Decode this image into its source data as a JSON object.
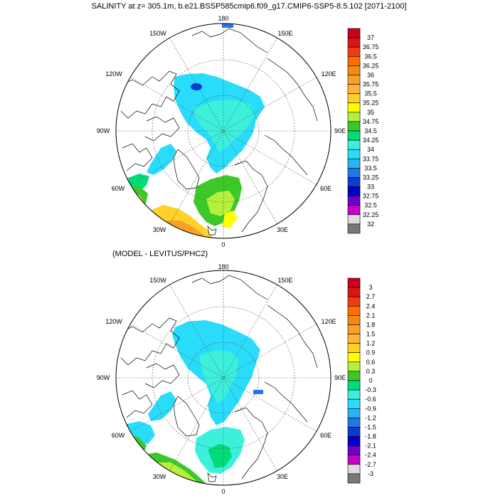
{
  "title": "SALINITY at z= 305.1m, b.e21.BSSP585cmip6.f09_g17.CMIP6-SSP5-8.5.102 [2071-2100]",
  "subtitle": "(MODEL - LEVITUS/PHC2)",
  "lon_labels": {
    "top": "180",
    "upper_left": "150W",
    "upper_right": "150E",
    "mid_upper_left": "120W",
    "mid_upper_right": "120E",
    "left": "90W",
    "right": "90E",
    "mid_lower_left": "60W",
    "mid_lower_right": "60E",
    "lower_left": "30W",
    "lower_right": "30E",
    "bottom": "0"
  },
  "colorbar_top": {
    "labels": [
      "37",
      "36.75",
      "36.5",
      "36.25",
      "36",
      "35.75",
      "35.5",
      "35.25",
      "35",
      "34.75",
      "34.5",
      "34.25",
      "34",
      "33.75",
      "33.5",
      "33.25",
      "33",
      "32.75",
      "32.5",
      "32.25",
      "32"
    ],
    "colors": [
      "#c8001e",
      "#dc1414",
      "#f03c14",
      "#ff6e00",
      "#f08c14",
      "#faa028",
      "#ffb43c",
      "#ffd228",
      "#ffff00",
      "#b4f03c",
      "#3cc828",
      "#00dc78",
      "#3cf0dc",
      "#28dcfa",
      "#28b4f0",
      "#1e78e6",
      "#0a3cd2",
      "#0000c8",
      "#6e00c8",
      "#c800c8",
      "#dcdcdc",
      "#787878"
    ]
  },
  "colorbar_bottom": {
    "labels": [
      "3",
      "2.7",
      "2.4",
      "2.1",
      "1.8",
      "1.5",
      "1.2",
      "0.9",
      "0.6",
      "0.3",
      "0",
      "-0.3",
      "-0.6",
      "-0.9",
      "-1.2",
      "-1.5",
      "-1.8",
      "-2.1",
      "-2.4",
      "-2.7",
      "-3"
    ],
    "colors": [
      "#c8001e",
      "#dc1414",
      "#f03c14",
      "#ff6e00",
      "#f08c14",
      "#faa028",
      "#ffb43c",
      "#ffd228",
      "#ffff00",
      "#b4f03c",
      "#3cc828",
      "#00dc78",
      "#3cf0dc",
      "#28dcfa",
      "#28b4f0",
      "#1e78e6",
      "#0a3cd2",
      "#0000c8",
      "#6e00c8",
      "#c800c8",
      "#dcdcdc",
      "#787878"
    ]
  }
}
